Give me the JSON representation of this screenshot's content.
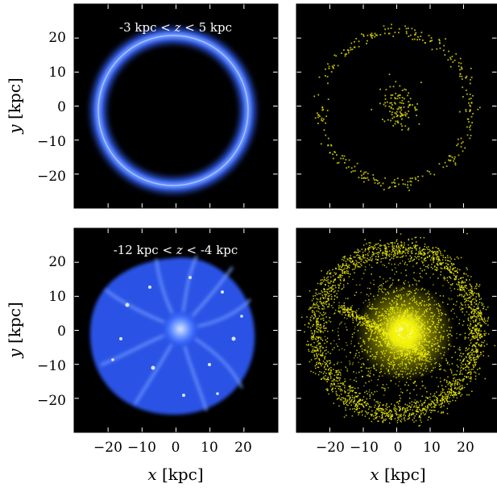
{
  "figure": {
    "panels": [
      {
        "id": "top-left",
        "component": "gas",
        "annotation": {
          "pre": "-3 kpc  < ",
          "var": "z",
          "post": " <  5 kpc"
        }
      },
      {
        "id": "top-right",
        "component": "stars",
        "annotation": null
      },
      {
        "id": "bottom-left",
        "component": "gas",
        "annotation": {
          "pre": "-12 kpc  < ",
          "var": "z",
          "post": " <  -4 kpc"
        }
      },
      {
        "id": "bottom-right",
        "component": "stars",
        "annotation": null
      }
    ],
    "axes": {
      "x_label": {
        "var": "x",
        "unit": " [kpc]"
      },
      "y_label": {
        "var": "y",
        "unit": " [kpc]"
      },
      "x_ticks": [
        "−20",
        "−10",
        "0",
        "10",
        "20"
      ],
      "y_ticks": [
        "20",
        "10",
        "0",
        "−10",
        "−20"
      ],
      "x_tick_values": [
        -20,
        -10,
        0,
        10,
        20
      ],
      "y_tick_values": [
        20,
        10,
        0,
        -10,
        -20
      ],
      "range": [
        -30,
        30
      ]
    },
    "colors": {
      "gas": "#3a6cff",
      "stars": "#f2f20a",
      "background": "#000000"
    }
  }
}
